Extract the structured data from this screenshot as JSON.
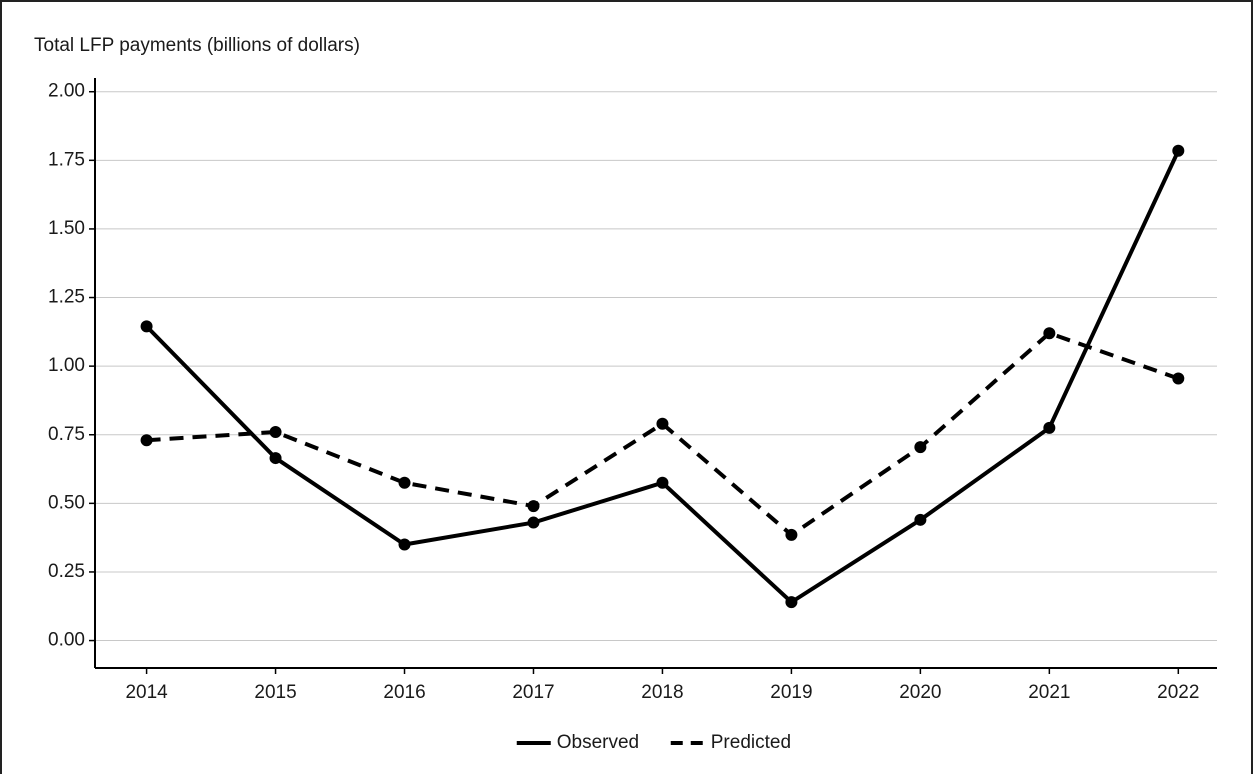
{
  "chart_data": {
    "type": "line",
    "title": "Total LFP payments (billions of dollars)",
    "x": [
      2014,
      2015,
      2016,
      2017,
      2018,
      2019,
      2020,
      2021,
      2022
    ],
    "series": [
      {
        "name": "Observed",
        "color": "#000000",
        "line_style": "solid",
        "values": [
          1.145,
          0.665,
          0.35,
          0.43,
          0.575,
          0.14,
          0.44,
          0.775,
          1.785
        ]
      },
      {
        "name": "Predicted",
        "color": "#000000",
        "line_style": "dashed",
        "values": [
          0.73,
          0.76,
          0.575,
          0.49,
          0.79,
          0.385,
          0.705,
          1.12,
          0.955
        ]
      }
    ],
    "xlim": [
      2013.6,
      2022.3
    ],
    "xticks": [
      2014,
      2015,
      2016,
      2017,
      2018,
      2019,
      2020,
      2021,
      2022
    ],
    "ylim": [
      -0.1,
      2.05
    ],
    "yticks": [
      {
        "value": 0,
        "label": "0.00"
      },
      {
        "value": 0.25,
        "label": "0.25"
      },
      {
        "value": 0.5,
        "label": "0.50"
      },
      {
        "value": 0.75,
        "label": "0.75"
      },
      {
        "value": 1,
        "label": "1.00"
      },
      {
        "value": 1.25,
        "label": "1.25"
      },
      {
        "value": 1.5,
        "label": "1.50"
      },
      {
        "value": 1.75,
        "label": "1.75"
      },
      {
        "value": 2,
        "label": "2.00"
      }
    ],
    "grid": true,
    "legend": "bottom"
  }
}
